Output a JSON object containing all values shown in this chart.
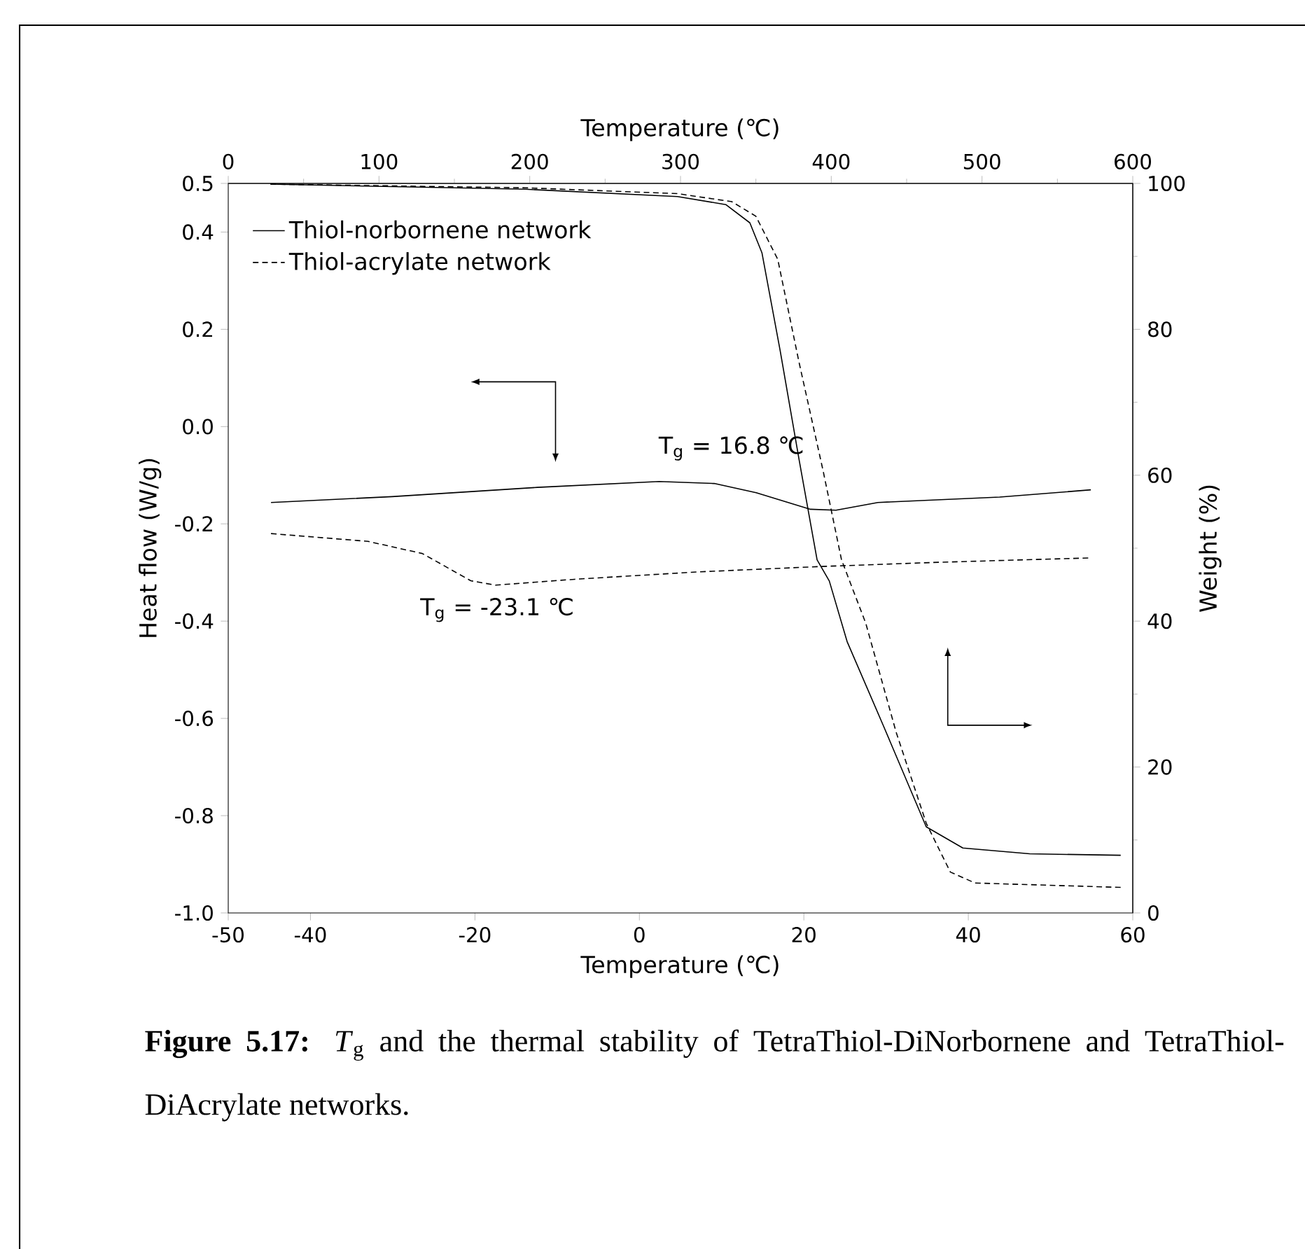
{
  "chart_data": [
    {
      "type": "line",
      "xlabel": "Temperature (℃)",
      "ylabel": "Heat flow (W/g)",
      "xlim": [
        -50,
        60
      ],
      "xticks": [
        -50,
        -40,
        -20,
        0,
        20,
        40,
        60
      ],
      "ylim": [
        -1.0,
        0.5
      ],
      "yticks": [
        {
          "value": -1.0,
          "label": "-1.0"
        },
        -0.8,
        -0.6,
        -0.4,
        -0.2,
        {
          "value": 0.0,
          "label": "0.0"
        },
        0.2,
        0.4,
        0.5
      ],
      "legend": "top left",
      "marker": "none",
      "series": [
        {
          "name": "Thiol-norbornene network",
          "color": "#000000",
          "line_style": "solid",
          "x": [
            -44.8,
            -30.1,
            -12.4,
            2.4,
            9.1,
            14.2,
            20.8,
            23.9,
            29.0,
            43.8,
            54.9
          ],
          "values": [
            -0.156,
            -0.144,
            -0.125,
            -0.113,
            -0.117,
            -0.136,
            -0.17,
            -0.172,
            -0.156,
            -0.145,
            -0.13
          ]
        },
        {
          "name": "Thiol-acrylate network",
          "color": "#000000",
          "line_style": "dashed",
          "x": [
            -44.8,
            -33.0,
            -26.4,
            -20.5,
            -17.5,
            -7.9,
            6.9,
            21.6,
            36.4,
            54.9
          ],
          "values": [
            -0.22,
            -0.236,
            -0.261,
            -0.317,
            -0.326,
            -0.314,
            -0.299,
            -0.288,
            -0.279,
            -0.27
          ]
        }
      ],
      "annotations": [
        "T$_{g}$ = 16.8 ℃",
        "T$_{g}$ = -23.1 ℃",
        "**Figure 5.17:** *T*$_{g}$ and the thermal stability of TetraThiol-DiNorbornene and TetraThiol-DiAcrylate networks."
      ]
    },
    {
      "type": "line",
      "xlabel": "Temperature (℃)",
      "ylabel": "Weight (%)",
      "xlim": [
        0,
        600
      ],
      "xticks": [
        0,
        100,
        200,
        300,
        400,
        500,
        600
      ],
      "ylim": [
        0,
        100
      ],
      "yticks": [
        0,
        20,
        40,
        60,
        80,
        100
      ],
      "marker": "none",
      "series": [
        {
          "color": "#000000",
          "line_style": "solid",
          "x": [
            28,
            197,
            298,
            330,
            346,
            354,
            366,
            378.6,
            390.6,
            398.7,
            410.5,
            434.7,
            463,
            487.3,
            531.6,
            592
          ],
          "values": [
            99.9,
            99.2,
            98.2,
            97.1,
            94.6,
            90.5,
            77.2,
            62.2,
            48.4,
            45.5,
            37.2,
            25.6,
            11.8,
            8.9,
            8.1,
            7.9
          ]
        },
        {
          "color": "#000000",
          "line_style": "dashed",
          "x": [
            28,
            197,
            298,
            334,
            350,
            364.5,
            378.6,
            394.7,
            406.8,
            422.9,
            443,
            463,
            479,
            495.4,
            592
          ],
          "values": [
            99.9,
            99.4,
            98.6,
            97.5,
            95.5,
            89.6,
            75.5,
            60.5,
            48.4,
            39.7,
            24.8,
            12.3,
            5.6,
            4.1,
            3.5
          ]
        }
      ]
    }
  ]
}
